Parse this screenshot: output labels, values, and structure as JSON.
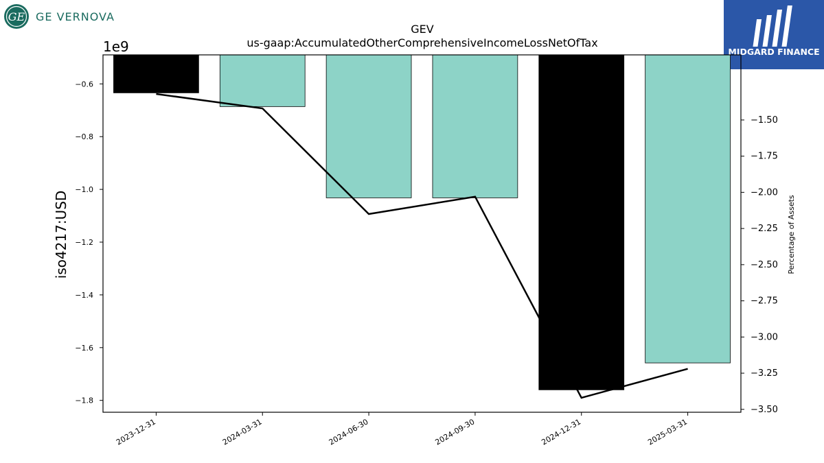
{
  "logos": {
    "left_brand": "GE VERNOVA",
    "right_brand": "MIDGARD FINANCE"
  },
  "chart_data": {
    "type": "bar",
    "title": "GEV",
    "subtitle": "us-gaap:AccumulatedOtherComprehensiveIncomeLossNetOfTax",
    "ylabel": "iso4217:USD",
    "y_offset_label": "1e9",
    "y2label": "Percentage of Assets",
    "categories": [
      "2023-12-31",
      "2024-03-31",
      "2024-06-30",
      "2024-09-30",
      "2024-12-31",
      "2025-03-31"
    ],
    "series": [
      {
        "type": "bar",
        "axis": "left",
        "values": [
          -634000000.0,
          -686000000.0,
          -1032000000.0,
          -1032000000.0,
          -1760000000.0,
          -1658000000.0
        ],
        "colors": [
          "#000000",
          "#8dd3c7",
          "#8dd3c7",
          "#8dd3c7",
          "#000000",
          "#8dd3c7"
        ]
      },
      {
        "type": "line",
        "axis": "right",
        "color": "#000000",
        "values": [
          -1.32,
          -1.42,
          -2.15,
          -2.03,
          -3.42,
          -3.22
        ]
      }
    ],
    "ylim": [
      -1845000000.0,
      -490000000.0
    ],
    "y_ticks": [
      -0.6,
      -0.8,
      -1.0,
      -1.2,
      -1.4,
      -1.6,
      -1.8
    ],
    "y_tick_labels": [
      "−0.6",
      "−0.8",
      "−1.0",
      "−1.2",
      "−1.4",
      "−1.6",
      "−1.8"
    ],
    "y2lim": [
      -3.52,
      -1.05
    ],
    "y2_ticks": [
      -1.5,
      -1.75,
      -2.0,
      -2.25,
      -2.5,
      -2.75,
      -3.0,
      -3.25,
      -3.5
    ],
    "y2_tick_labels": [
      "−1.50",
      "−1.75",
      "−2.00",
      "−2.25",
      "−2.50",
      "−2.75",
      "−3.00",
      "−3.25",
      "−3.50"
    ],
    "grid": false
  }
}
